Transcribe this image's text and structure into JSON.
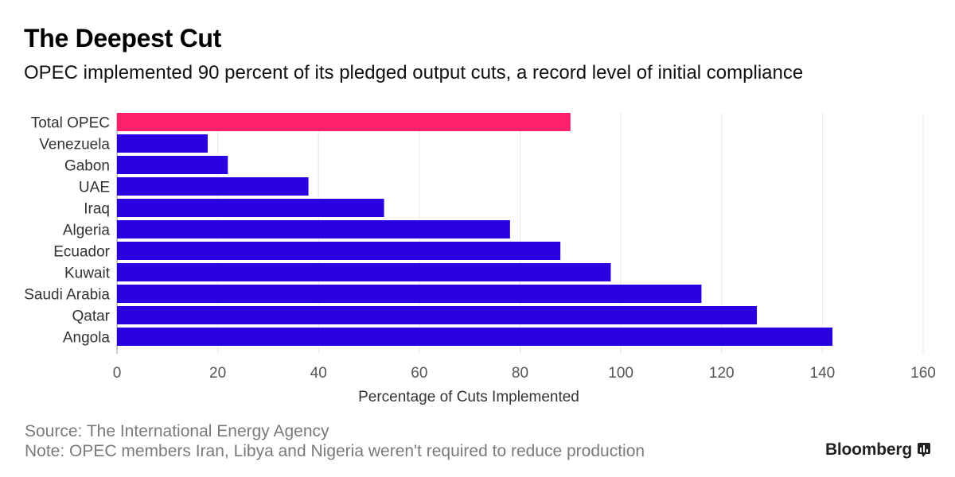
{
  "header": {
    "title": "The Deepest Cut",
    "subtitle": "OPEC implemented 90 percent of its pledged output cuts, a record level of initial compliance"
  },
  "footer": {
    "source": "Source: The International Energy Agency",
    "note": "Note: OPEC members Iran, Libya and Nigeria weren't required to reduce production",
    "brand": "Bloomberg",
    "brand_icon": "bloomberg-terminal-icon"
  },
  "colors": {
    "highlight": "#ff1f6b",
    "bar": "#2a00e0",
    "grid": "#e6e6e6",
    "axis_text": "#555555"
  },
  "chart_data": {
    "type": "bar",
    "orientation": "horizontal",
    "categories": [
      "Total OPEC",
      "Venezuela",
      "Gabon",
      "UAE",
      "Iraq",
      "Algeria",
      "Ecuador",
      "Kuwait",
      "Saudi Arabia",
      "Qatar",
      "Angola"
    ],
    "values": [
      90,
      18,
      22,
      38,
      53,
      78,
      88,
      98,
      116,
      127,
      142
    ],
    "highlight": [
      "Total OPEC"
    ],
    "xlabel": "Percentage of Cuts Implemented",
    "ylabel": "",
    "xlim": [
      0,
      160
    ],
    "xticks": [
      0,
      20,
      40,
      60,
      80,
      100,
      120,
      140,
      160
    ],
    "grid": "vertical"
  }
}
